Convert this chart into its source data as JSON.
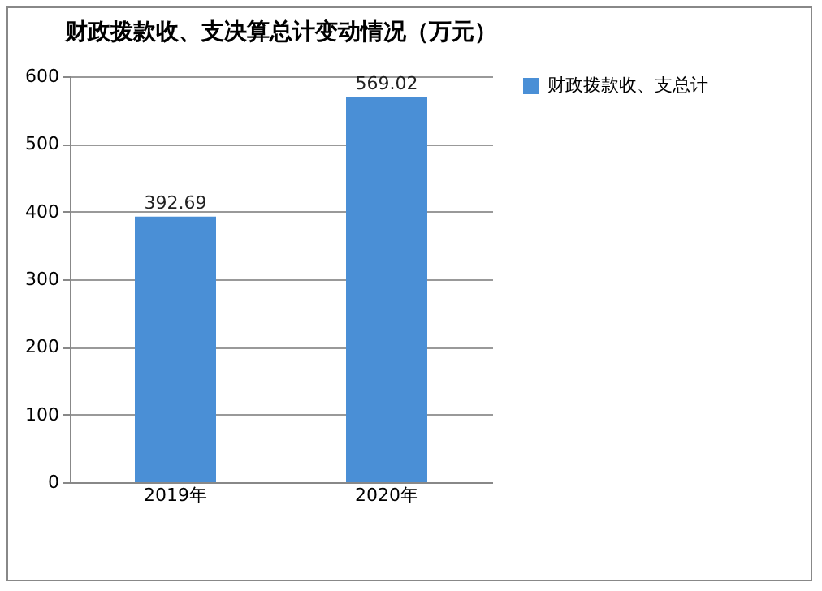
{
  "chart_data": {
    "type": "bar",
    "title": "财政拨款收、支决算总计变动情况（万元）",
    "categories": [
      "2019年",
      "2020年"
    ],
    "series": [
      {
        "name": "财政拨款收、支总计",
        "color": "#4a8fd6",
        "values": [
          392.69,
          569.02
        ]
      }
    ],
    "ylim": [
      0,
      600
    ],
    "yticks": [
      0,
      100,
      200,
      300,
      400,
      500,
      600
    ],
    "grid": true,
    "legend": "right",
    "data_labels": true
  }
}
